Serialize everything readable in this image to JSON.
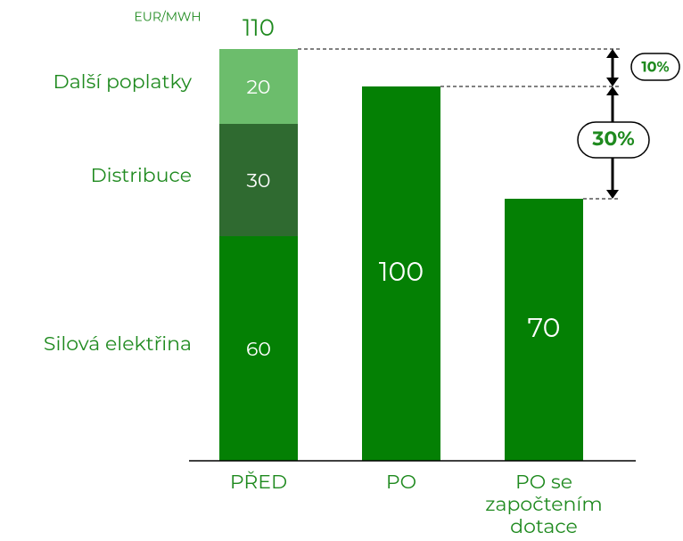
{
  "chart_data": {
    "type": "stacked_bar",
    "y_label": "EUR/MWH",
    "categories": [
      "PŘED",
      "PO",
      "PO se započtením dotace"
    ],
    "series": [
      {
        "name": "Silová elektřina",
        "color": "#048004",
        "values": [
          60,
          100,
          70
        ]
      },
      {
        "name": "Distribuce",
        "color": "#2f6a30",
        "values": [
          30,
          null,
          null
        ]
      },
      {
        "name": "Další poplatky",
        "color": "#6cbd6c",
        "values": [
          20,
          null,
          null
        ]
      }
    ],
    "total_label": 110,
    "ylim": [
      0,
      110
    ],
    "annotations": [
      {
        "label": "10%"
      },
      {
        "label": "30%"
      }
    ]
  }
}
